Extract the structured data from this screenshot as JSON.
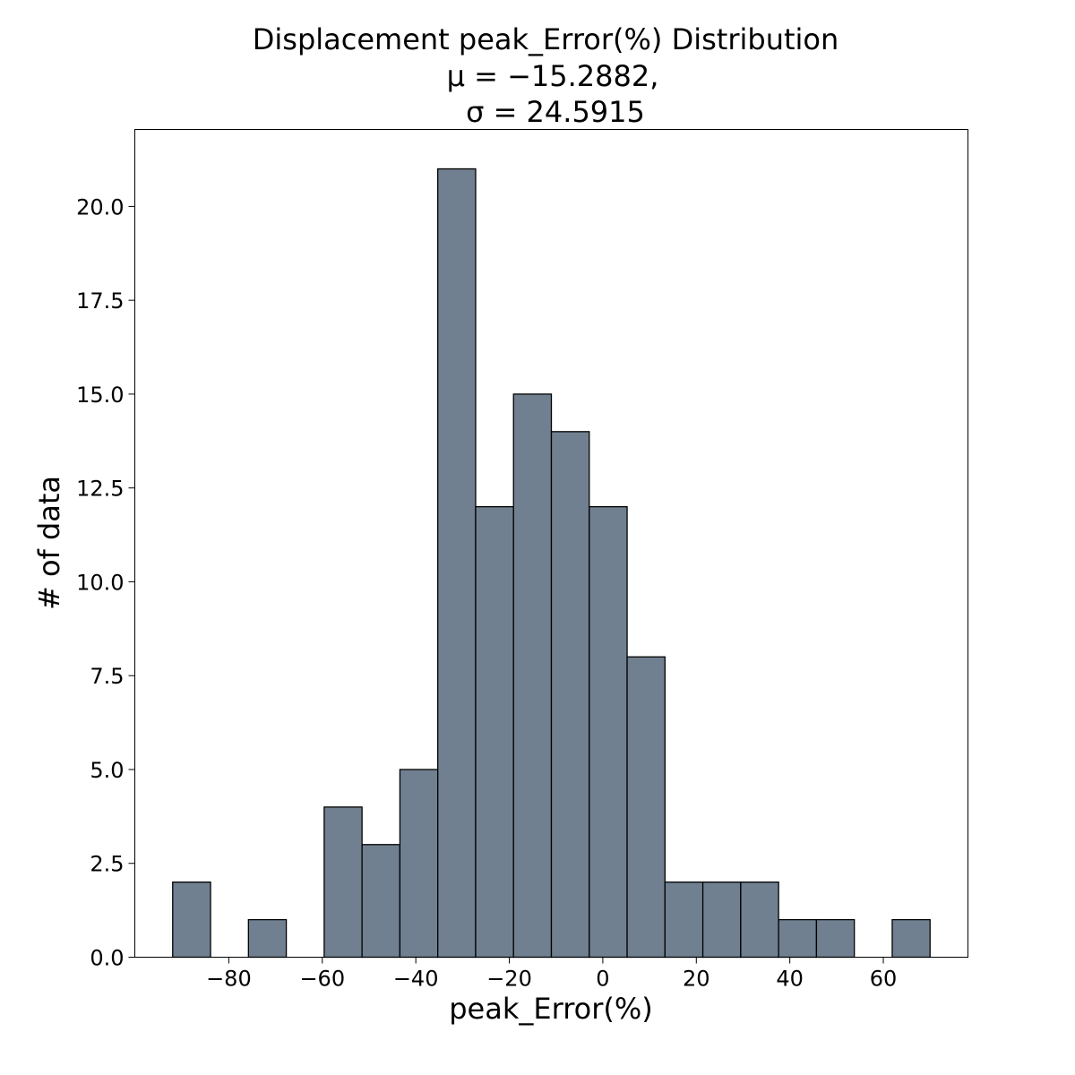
{
  "chart_data": {
    "type": "bar",
    "title_lines": [
      "Displacement peak_Error(%) Distribution",
      "μ = −15.2882,",
      "σ = 24.5915"
    ],
    "xlabel": "peak_Error(%)",
    "ylabel": "# of data",
    "bin_edges": [
      -92.0,
      -83.9,
      -75.8,
      -67.7,
      -59.6,
      -51.5,
      -43.4,
      -35.3,
      -27.2,
      -19.1,
      -11.0,
      -2.9,
      5.2,
      13.3,
      21.4,
      29.5,
      37.6,
      45.7,
      53.8,
      61.9,
      70.0
    ],
    "values": [
      2,
      0,
      1,
      0,
      4,
      3,
      5,
      21,
      12,
      15,
      14,
      12,
      8,
      2,
      2,
      2,
      1,
      1,
      0,
      1
    ],
    "xlim": [
      -100.1,
      78.1
    ],
    "ylim": [
      0,
      22.05
    ],
    "x_ticks": [
      -80,
      -60,
      -40,
      -20,
      0,
      20,
      40,
      60
    ],
    "x_tick_labels": [
      "−80",
      "−60",
      "−40",
      "−20",
      "0",
      "20",
      "40",
      "60"
    ],
    "y_ticks": [
      0.0,
      2.5,
      5.0,
      7.5,
      10.0,
      12.5,
      15.0,
      17.5,
      20.0
    ],
    "y_tick_labels": [
      "0.0",
      "2.5",
      "5.0",
      "7.5",
      "10.0",
      "12.5",
      "15.0",
      "17.5",
      "20.0"
    ],
    "bar_color": "#708090",
    "edge_color": "#000000",
    "grid": false,
    "legend": "none"
  }
}
